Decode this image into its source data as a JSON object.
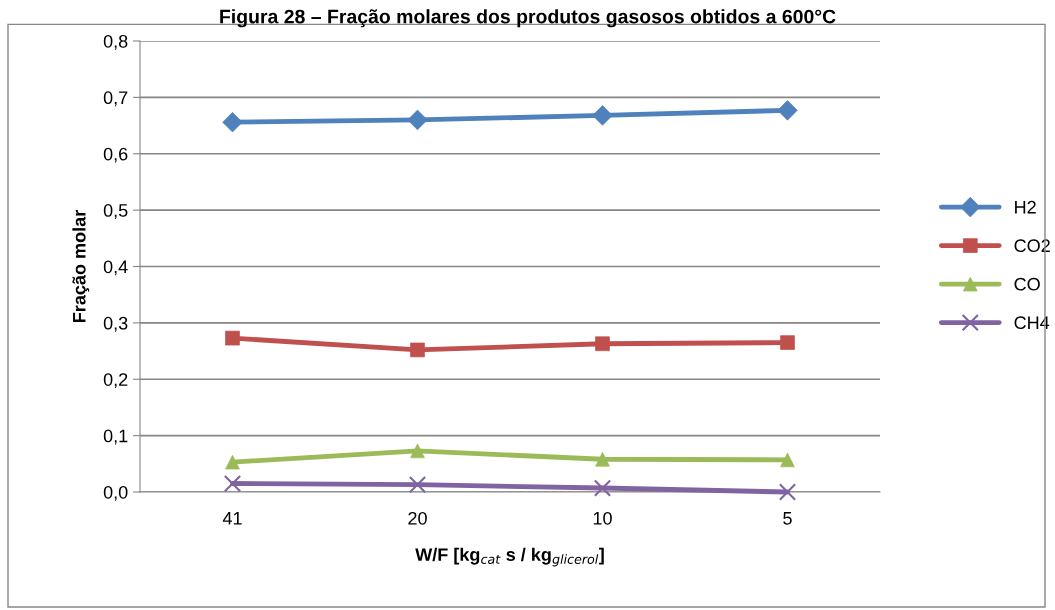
{
  "chart_data": {
    "type": "line",
    "title": "Figura 28 – Fração molares dos produtos gasosos obtidos a 600°C",
    "xlabel": "W/F [kg$_{cat}$ s / kg$_{glicerol}$]",
    "ylabel": "Fração molar",
    "categories": [
      "41",
      "20",
      "10",
      "5"
    ],
    "series": [
      {
        "name": "H2",
        "color": "#4f81bd",
        "marker": "diamond",
        "values": [
          0.656,
          0.66,
          0.668,
          0.677
        ]
      },
      {
        "name": "CO2",
        "color": "#c0504d",
        "marker": "square",
        "values": [
          0.273,
          0.252,
          0.263,
          0.265
        ]
      },
      {
        "name": "CO",
        "color": "#9bbb59",
        "marker": "triangle",
        "values": [
          0.053,
          0.073,
          0.058,
          0.057
        ]
      },
      {
        "name": "CH4",
        "color": "#8064a2",
        "marker": "cross",
        "values": [
          0.015,
          0.013,
          0.007,
          0.0
        ]
      }
    ],
    "ylim": [
      0,
      0.8
    ],
    "yticks": [
      {
        "value": 0,
        "label": "0,0"
      },
      {
        "value": 0.1,
        "label": "0,1"
      },
      {
        "value": 0.2,
        "label": "0,2"
      },
      {
        "value": 0.3,
        "label": "0,3"
      },
      {
        "value": 0.4,
        "label": "0,4"
      },
      {
        "value": 0.5,
        "label": "0,5"
      },
      {
        "value": 0.6,
        "label": "0,6"
      },
      {
        "value": 0.7,
        "label": "0,7"
      },
      {
        "value": 0.8,
        "label": "0,8"
      }
    ],
    "grid": "y",
    "legend": "right",
    "line_style": "solid"
  }
}
